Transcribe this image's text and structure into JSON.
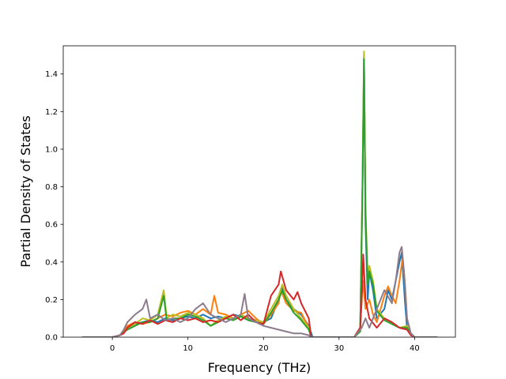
{
  "chart_data": {
    "type": "line",
    "title": "",
    "xlabel": "Frequency (THz)",
    "ylabel": "Partial Density of States",
    "xlim": [
      -6.5,
      45.4
    ],
    "ylim": [
      0,
      1.55
    ],
    "xticks": [
      0,
      10,
      20,
      30,
      40
    ],
    "yticks": [
      0.0,
      0.2,
      0.4,
      0.6,
      0.8,
      1.0,
      1.2,
      1.4
    ],
    "xtick_labels": [
      "0",
      "10",
      "20",
      "30",
      "40"
    ],
    "ytick_labels": [
      "0.0",
      "0.2",
      "0.4",
      "0.6",
      "0.8",
      "1.0",
      "1.2",
      "1.4"
    ],
    "grid": false,
    "legend": "none",
    "series": [
      {
        "color": "#1f77b4",
        "points": [
          [
            -4,
            0
          ],
          [
            0,
            0
          ],
          [
            1,
            0.01
          ],
          [
            1.5,
            0.03
          ],
          [
            2,
            0.05
          ],
          [
            3,
            0.07
          ],
          [
            4,
            0.08
          ],
          [
            5,
            0.09
          ],
          [
            6,
            0.08
          ],
          [
            7,
            0.1
          ],
          [
            8,
            0.09
          ],
          [
            9,
            0.1
          ],
          [
            10,
            0.11
          ],
          [
            11,
            0.1
          ],
          [
            12,
            0.12
          ],
          [
            13,
            0.1
          ],
          [
            14,
            0.11
          ],
          [
            15,
            0.1
          ],
          [
            16,
            0.12
          ],
          [
            17,
            0.11
          ],
          [
            18,
            0.1
          ],
          [
            19,
            0.09
          ],
          [
            20,
            0.08
          ],
          [
            21,
            0.1
          ],
          [
            22,
            0.2
          ],
          [
            22.5,
            0.27
          ],
          [
            23,
            0.2
          ],
          [
            24,
            0.15
          ],
          [
            25,
            0.12
          ],
          [
            26,
            0.06
          ],
          [
            26.5,
            0
          ],
          [
            32,
            0
          ],
          [
            32.8,
            0.05
          ],
          [
            33.1,
            0.8
          ],
          [
            33.3,
            1.5
          ],
          [
            33.5,
            0.6
          ],
          [
            33.8,
            0.2
          ],
          [
            34,
            0.35
          ],
          [
            34.5,
            0.25
          ],
          [
            35,
            0.1
          ],
          [
            36,
            0.15
          ],
          [
            36.5,
            0.25
          ],
          [
            37,
            0.2
          ],
          [
            38,
            0.4
          ],
          [
            38.3,
            0.45
          ],
          [
            38.7,
            0.2
          ],
          [
            39,
            0.05
          ],
          [
            39.5,
            0.02
          ],
          [
            40,
            0
          ],
          [
            43,
            0
          ]
        ]
      },
      {
        "color": "#ff7f0e",
        "points": [
          [
            -4,
            0
          ],
          [
            0,
            0
          ],
          [
            1,
            0.01
          ],
          [
            1.5,
            0.03
          ],
          [
            2,
            0.06
          ],
          [
            3,
            0.08
          ],
          [
            4,
            0.07
          ],
          [
            5,
            0.08
          ],
          [
            6,
            0.1
          ],
          [
            7,
            0.12
          ],
          [
            8,
            0.11
          ],
          [
            9,
            0.13
          ],
          [
            10,
            0.14
          ],
          [
            11,
            0.12
          ],
          [
            12,
            0.15
          ],
          [
            13,
            0.12
          ],
          [
            13.5,
            0.22
          ],
          [
            14,
            0.13
          ],
          [
            15,
            0.12
          ],
          [
            16,
            0.1
          ],
          [
            17,
            0.12
          ],
          [
            18,
            0.14
          ],
          [
            19,
            0.1
          ],
          [
            20,
            0.07
          ],
          [
            21,
            0.12
          ],
          [
            22,
            0.18
          ],
          [
            22.3,
            0.25
          ],
          [
            23,
            0.18
          ],
          [
            24,
            0.14
          ],
          [
            25,
            0.13
          ],
          [
            26,
            0.05
          ],
          [
            26.3,
            0
          ],
          [
            32,
            0
          ],
          [
            32.8,
            0.05
          ],
          [
            33,
            0.2
          ],
          [
            33.2,
            0.3
          ],
          [
            33.5,
            0.15
          ],
          [
            34,
            0.2
          ],
          [
            34.5,
            0.12
          ],
          [
            35,
            0.08
          ],
          [
            36,
            0.22
          ],
          [
            36.5,
            0.27
          ],
          [
            37,
            0.22
          ],
          [
            37.5,
            0.18
          ],
          [
            38,
            0.3
          ],
          [
            38.4,
            0.42
          ],
          [
            38.7,
            0.3
          ],
          [
            39,
            0.1
          ],
          [
            39.5,
            0.02
          ],
          [
            40,
            0
          ],
          [
            43,
            0
          ]
        ]
      },
      {
        "color": "#bcbd22",
        "points": [
          [
            -4,
            0
          ],
          [
            0,
            0
          ],
          [
            1,
            0.01
          ],
          [
            1.5,
            0.02
          ],
          [
            2,
            0.05
          ],
          [
            3,
            0.07
          ],
          [
            4,
            0.1
          ],
          [
            5,
            0.09
          ],
          [
            6,
            0.12
          ],
          [
            6.8,
            0.25
          ],
          [
            7.2,
            0.1
          ],
          [
            8,
            0.12
          ],
          [
            9,
            0.11
          ],
          [
            10,
            0.13
          ],
          [
            11,
            0.12
          ],
          [
            12,
            0.1
          ],
          [
            13,
            0.06
          ],
          [
            14,
            0.09
          ],
          [
            15,
            0.11
          ],
          [
            16,
            0.1
          ],
          [
            17,
            0.12
          ],
          [
            18,
            0.1
          ],
          [
            19,
            0.09
          ],
          [
            20,
            0.08
          ],
          [
            21,
            0.15
          ],
          [
            22,
            0.22
          ],
          [
            22.5,
            0.28
          ],
          [
            23,
            0.22
          ],
          [
            24,
            0.15
          ],
          [
            25,
            0.1
          ],
          [
            26,
            0.05
          ],
          [
            26.3,
            0
          ],
          [
            32,
            0
          ],
          [
            32.8,
            0.03
          ],
          [
            33.1,
            0.85
          ],
          [
            33.3,
            1.52
          ],
          [
            33.5,
            0.7
          ],
          [
            33.8,
            0.3
          ],
          [
            34,
            0.38
          ],
          [
            34.5,
            0.3
          ],
          [
            35,
            0.15
          ],
          [
            36,
            0.1
          ],
          [
            37,
            0.08
          ],
          [
            38,
            0.05
          ],
          [
            39,
            0.06
          ],
          [
            39.5,
            0.02
          ],
          [
            40,
            0
          ],
          [
            43,
            0
          ]
        ]
      },
      {
        "color": "#2ca02c",
        "points": [
          [
            -4,
            0
          ],
          [
            0,
            0
          ],
          [
            1,
            0.01
          ],
          [
            2,
            0.04
          ],
          [
            3,
            0.06
          ],
          [
            4,
            0.08
          ],
          [
            5,
            0.08
          ],
          [
            6,
            0.1
          ],
          [
            6.8,
            0.22
          ],
          [
            7.2,
            0.09
          ],
          [
            8,
            0.1
          ],
          [
            9,
            0.1
          ],
          [
            10,
            0.12
          ],
          [
            11,
            0.11
          ],
          [
            12,
            0.09
          ],
          [
            13,
            0.06
          ],
          [
            14,
            0.08
          ],
          [
            15,
            0.1
          ],
          [
            16,
            0.09
          ],
          [
            17,
            0.11
          ],
          [
            18,
            0.09
          ],
          [
            19,
            0.08
          ],
          [
            20,
            0.07
          ],
          [
            21,
            0.13
          ],
          [
            22,
            0.2
          ],
          [
            22.5,
            0.25
          ],
          [
            23,
            0.2
          ],
          [
            24,
            0.13
          ],
          [
            25,
            0.09
          ],
          [
            26,
            0.04
          ],
          [
            26.3,
            0
          ],
          [
            32,
            0
          ],
          [
            32.8,
            0.03
          ],
          [
            33.1,
            0.8
          ],
          [
            33.3,
            1.48
          ],
          [
            33.5,
            0.65
          ],
          [
            33.8,
            0.28
          ],
          [
            34,
            0.35
          ],
          [
            34.5,
            0.28
          ],
          [
            35,
            0.14
          ],
          [
            36,
            0.09
          ],
          [
            37,
            0.07
          ],
          [
            38,
            0.05
          ],
          [
            39,
            0.05
          ],
          [
            39.5,
            0.02
          ],
          [
            40,
            0
          ],
          [
            43,
            0
          ]
        ]
      },
      {
        "color": "#d62728",
        "points": [
          [
            -4,
            0
          ],
          [
            0,
            0
          ],
          [
            1,
            0.01
          ],
          [
            1.5,
            0.02
          ],
          [
            2,
            0.05
          ],
          [
            3,
            0.08
          ],
          [
            4,
            0.07
          ],
          [
            5,
            0.09
          ],
          [
            6,
            0.07
          ],
          [
            7,
            0.09
          ],
          [
            8,
            0.08
          ],
          [
            9,
            0.1
          ],
          [
            10,
            0.09
          ],
          [
            11,
            0.1
          ],
          [
            12,
            0.08
          ],
          [
            13,
            0.09
          ],
          [
            14,
            0.08
          ],
          [
            15,
            0.1
          ],
          [
            16,
            0.12
          ],
          [
            17,
            0.09
          ],
          [
            18,
            0.12
          ],
          [
            19,
            0.08
          ],
          [
            20,
            0.07
          ],
          [
            21,
            0.22
          ],
          [
            22,
            0.28
          ],
          [
            22.3,
            0.35
          ],
          [
            23,
            0.25
          ],
          [
            24,
            0.2
          ],
          [
            24.5,
            0.24
          ],
          [
            25,
            0.18
          ],
          [
            26,
            0.1
          ],
          [
            26.3,
            0
          ],
          [
            32,
            0
          ],
          [
            32.8,
            0.05
          ],
          [
            33,
            0.2
          ],
          [
            33.2,
            0.44
          ],
          [
            33.5,
            0.2
          ],
          [
            34,
            0.1
          ],
          [
            35,
            0.05
          ],
          [
            36,
            0.1
          ],
          [
            37,
            0.08
          ],
          [
            38,
            0.05
          ],
          [
            39,
            0.04
          ],
          [
            39.5,
            0.01
          ],
          [
            40,
            0
          ],
          [
            43,
            0
          ]
        ]
      },
      {
        "color": "#8c7b8c",
        "points": [
          [
            -4,
            0
          ],
          [
            0,
            0
          ],
          [
            1,
            0.01
          ],
          [
            1.5,
            0.04
          ],
          [
            2,
            0.08
          ],
          [
            3,
            0.12
          ],
          [
            4,
            0.15
          ],
          [
            4.5,
            0.2
          ],
          [
            5,
            0.1
          ],
          [
            6,
            0.12
          ],
          [
            7,
            0.09
          ],
          [
            8,
            0.1
          ],
          [
            9,
            0.08
          ],
          [
            10,
            0.1
          ],
          [
            11,
            0.15
          ],
          [
            12,
            0.18
          ],
          [
            13,
            0.12
          ],
          [
            14,
            0.1
          ],
          [
            15,
            0.08
          ],
          [
            16,
            0.1
          ],
          [
            17,
            0.12
          ],
          [
            17.5,
            0.23
          ],
          [
            18,
            0.1
          ],
          [
            19,
            0.08
          ],
          [
            20,
            0.06
          ],
          [
            21,
            0.05
          ],
          [
            22,
            0.04
          ],
          [
            23,
            0.03
          ],
          [
            24,
            0.02
          ],
          [
            25,
            0.02
          ],
          [
            26,
            0.01
          ],
          [
            26.3,
            0
          ],
          [
            32,
            0
          ],
          [
            33,
            0.05
          ],
          [
            33.5,
            0.1
          ],
          [
            34,
            0.05
          ],
          [
            35,
            0.15
          ],
          [
            35.5,
            0.2
          ],
          [
            36,
            0.25
          ],
          [
            37,
            0.18
          ],
          [
            37.5,
            0.3
          ],
          [
            38,
            0.45
          ],
          [
            38.3,
            0.48
          ],
          [
            38.6,
            0.35
          ],
          [
            39,
            0.1
          ],
          [
            39.5,
            0.02
          ],
          [
            40,
            0
          ],
          [
            43,
            0
          ]
        ]
      }
    ]
  }
}
